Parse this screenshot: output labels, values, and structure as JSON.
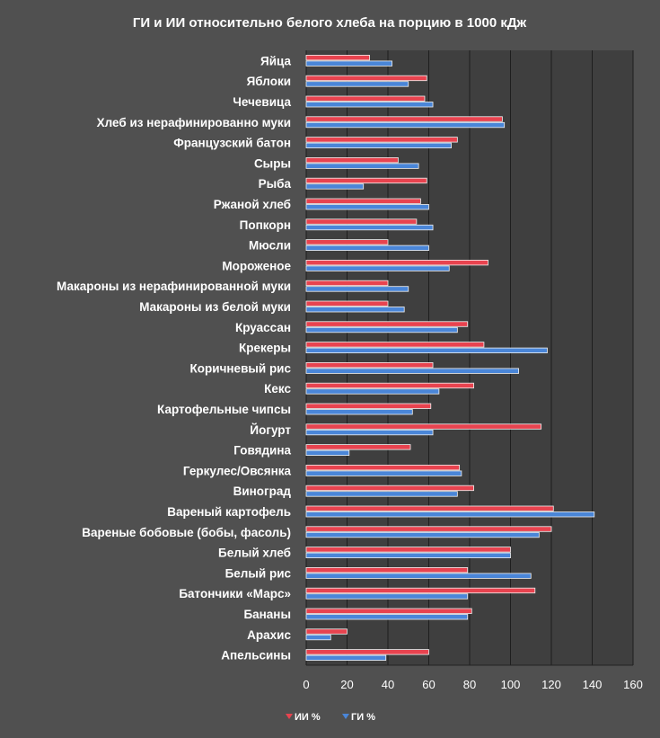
{
  "chart_data": {
    "type": "bar",
    "orientation": "horizontal",
    "title": "ГИ и ИИ  относительно белого хлеба на порцию в 1000 кДж",
    "xlabel": "",
    "ylabel": "",
    "xlim": [
      0,
      160
    ],
    "x_ticks": [
      0,
      20,
      40,
      60,
      80,
      100,
      120,
      140,
      160
    ],
    "grid": true,
    "legend_position": "bottom",
    "categories": [
      "Яйца",
      "Яблоки",
      "Чечевица",
      "Хлеб из нерафинированно муки",
      "Французский батон",
      "Сыры",
      "Рыба",
      "Ржаной хлеб",
      "Попкорн",
      "Мюсли",
      "Мороженое",
      "Макароны из нерафинированной муки",
      "Макароны из белой муки",
      "Круассан",
      "Крекеры",
      "Коричневый рис",
      "Кекс",
      "Картофельные чипсы",
      "Йогурт",
      "Говядина",
      "Геркулес/Овсянка",
      "Виноград",
      "Вареный картофель",
      "Вареные бобовые (бобы, фасоль)",
      "Белый хлеб",
      "Белый рис",
      "Батончики «Марс»",
      "Бананы",
      "Арахис",
      "Апельсины"
    ],
    "series": [
      {
        "name": "ИИ %",
        "color": "#e8434f",
        "values": [
          31,
          59,
          58,
          96,
          74,
          45,
          59,
          56,
          54,
          40,
          89,
          40,
          40,
          79,
          87,
          62,
          82,
          61,
          115,
          51,
          75,
          82,
          121,
          120,
          100,
          79,
          112,
          81,
          20,
          60
        ]
      },
      {
        "name": "ГИ %",
        "color": "#4a86d8",
        "values": [
          42,
          50,
          62,
          97,
          71,
          55,
          28,
          60,
          62,
          60,
          70,
          50,
          48,
          74,
          118,
          104,
          65,
          52,
          62,
          21,
          76,
          74,
          141,
          114,
          100,
          110,
          79,
          79,
          12,
          39
        ]
      }
    ]
  }
}
